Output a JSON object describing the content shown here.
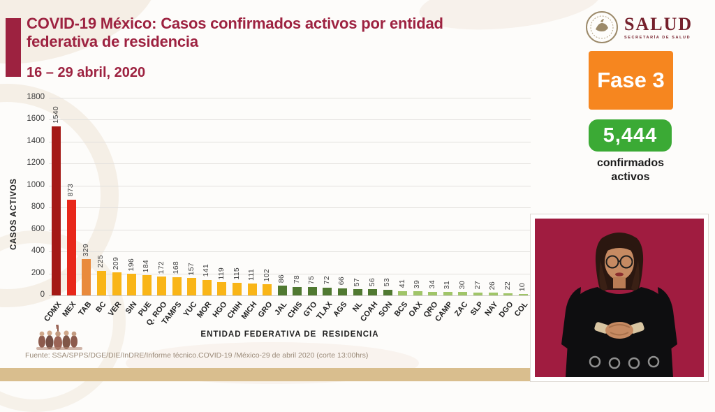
{
  "header": {
    "title": "COVID-19 México: Casos confirmados activos por entidad federativa de residencia",
    "date_range": "16 – 29 abril, 2020",
    "accent_color": "#9D2240"
  },
  "logo": {
    "name": "SALUD",
    "subtitle": "SECRETARÍA DE SALUD"
  },
  "badges": {
    "phase": {
      "label": "Fase 3",
      "color": "#F6861F"
    },
    "active_cases": {
      "value": "5,444",
      "color": "#3BAA35",
      "caption": "confirmados activos"
    }
  },
  "chart_data": {
    "type": "bar",
    "title": "COVID-19 México: Casos confirmados activos por entidad federativa de residencia",
    "xlabel": "ENTIDAD FEDERATIVA DE  RESIDENCIA",
    "ylabel": "CASOS ACTIVOS",
    "ylim": [
      0,
      1800
    ],
    "ytick_step": 200,
    "grid": true,
    "categories": [
      "CDMX",
      "MEX",
      "TAB",
      "BC",
      "VER",
      "SIN",
      "PUE",
      "Q. ROO",
      "TAMPS",
      "YUC",
      "MOR",
      "HGO",
      "CHIH",
      "MICH",
      "GRO",
      "JAL",
      "CHIS",
      "GTO",
      "TLAX",
      "AGS",
      "NL",
      "COAH",
      "SON",
      "BCS",
      "OAX",
      "QRO",
      "CAMP",
      "ZAC",
      "SLP",
      "NAY",
      "DGO",
      "COL"
    ],
    "values": [
      1540,
      873,
      329,
      225,
      209,
      196,
      184,
      172,
      168,
      157,
      141,
      119,
      115,
      111,
      102,
      86,
      78,
      75,
      72,
      66,
      57,
      56,
      53,
      41,
      39,
      34,
      31,
      30,
      27,
      26,
      22,
      10
    ],
    "colors": [
      "#A41916",
      "#E8271A",
      "#E98A3C",
      "#F9B517",
      "#F9B517",
      "#F9B517",
      "#F9B517",
      "#F9B517",
      "#F9B517",
      "#F9B517",
      "#F9B517",
      "#F9B517",
      "#F9B517",
      "#F9B517",
      "#F9B517",
      "#507931",
      "#507931",
      "#507931",
      "#507931",
      "#507931",
      "#507931",
      "#507931",
      "#507931",
      "#A0C568",
      "#A0C568",
      "#A0C568",
      "#A0C568",
      "#A0C568",
      "#A0C568",
      "#A0C568",
      "#A0C568",
      "#A0C568"
    ]
  },
  "footer": {
    "source": "Fuente: SSA/SPPS/DGE/DIE/InDRE/Informe técnico.COVID-19 /México-29 de abril 2020 (corte 13:00hrs)",
    "band_color": "#D9BE8E"
  },
  "video": {
    "background_color": "#A01C40"
  }
}
